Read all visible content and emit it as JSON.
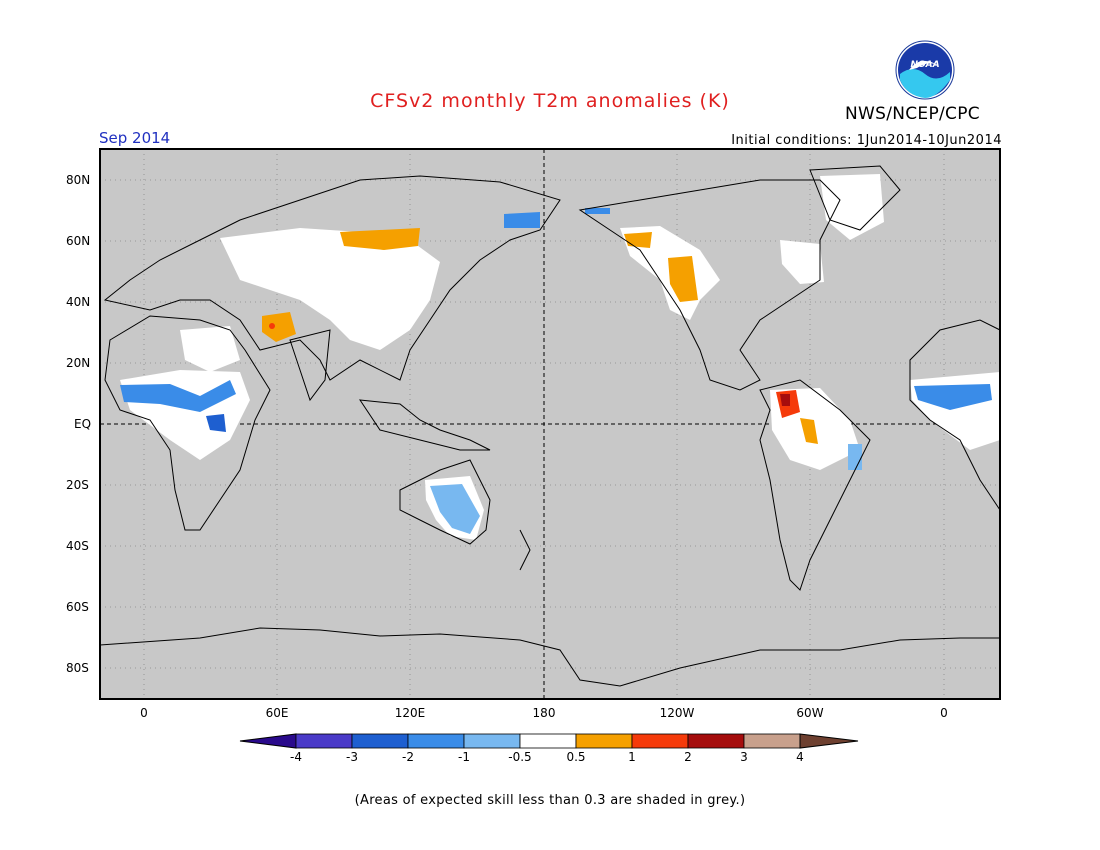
{
  "title": "CFSv2 monthly T2m anomalies (K)",
  "valid_month": "Sep 2014",
  "initial_conditions": "Initial conditions: 1Jun2014-10Jun2014",
  "agency": "NWS/NCEP/CPC",
  "logo_text": "NOAA",
  "lat_labels": [
    "80N",
    "60N",
    "40N",
    "20N",
    "EQ",
    "20S",
    "40S",
    "60S",
    "80S"
  ],
  "lon_labels": [
    "0",
    "60E",
    "120E",
    "180",
    "120W",
    "60W",
    "0"
  ],
  "colorbar": {
    "labels": [
      "-4",
      "-3",
      "-2",
      "-1",
      "-0.5",
      "0.5",
      "1",
      "2",
      "3",
      "4"
    ],
    "colors": [
      "#2a0a8c",
      "#4a3ac8",
      "#1e5fd0",
      "#3a8ce8",
      "#78b8f0",
      "#ffffff",
      "#f5a000",
      "#f53a0a",
      "#a50d0d",
      "#c8a08c",
      "#6e4030"
    ]
  },
  "colors": {
    "no_skill_grey": "#c8c8c8",
    "title_red": "#e02020",
    "month_blue": "#2030c0"
  },
  "footnote": "(Areas of expected skill less than 0.3 are shaded in grey.)"
}
